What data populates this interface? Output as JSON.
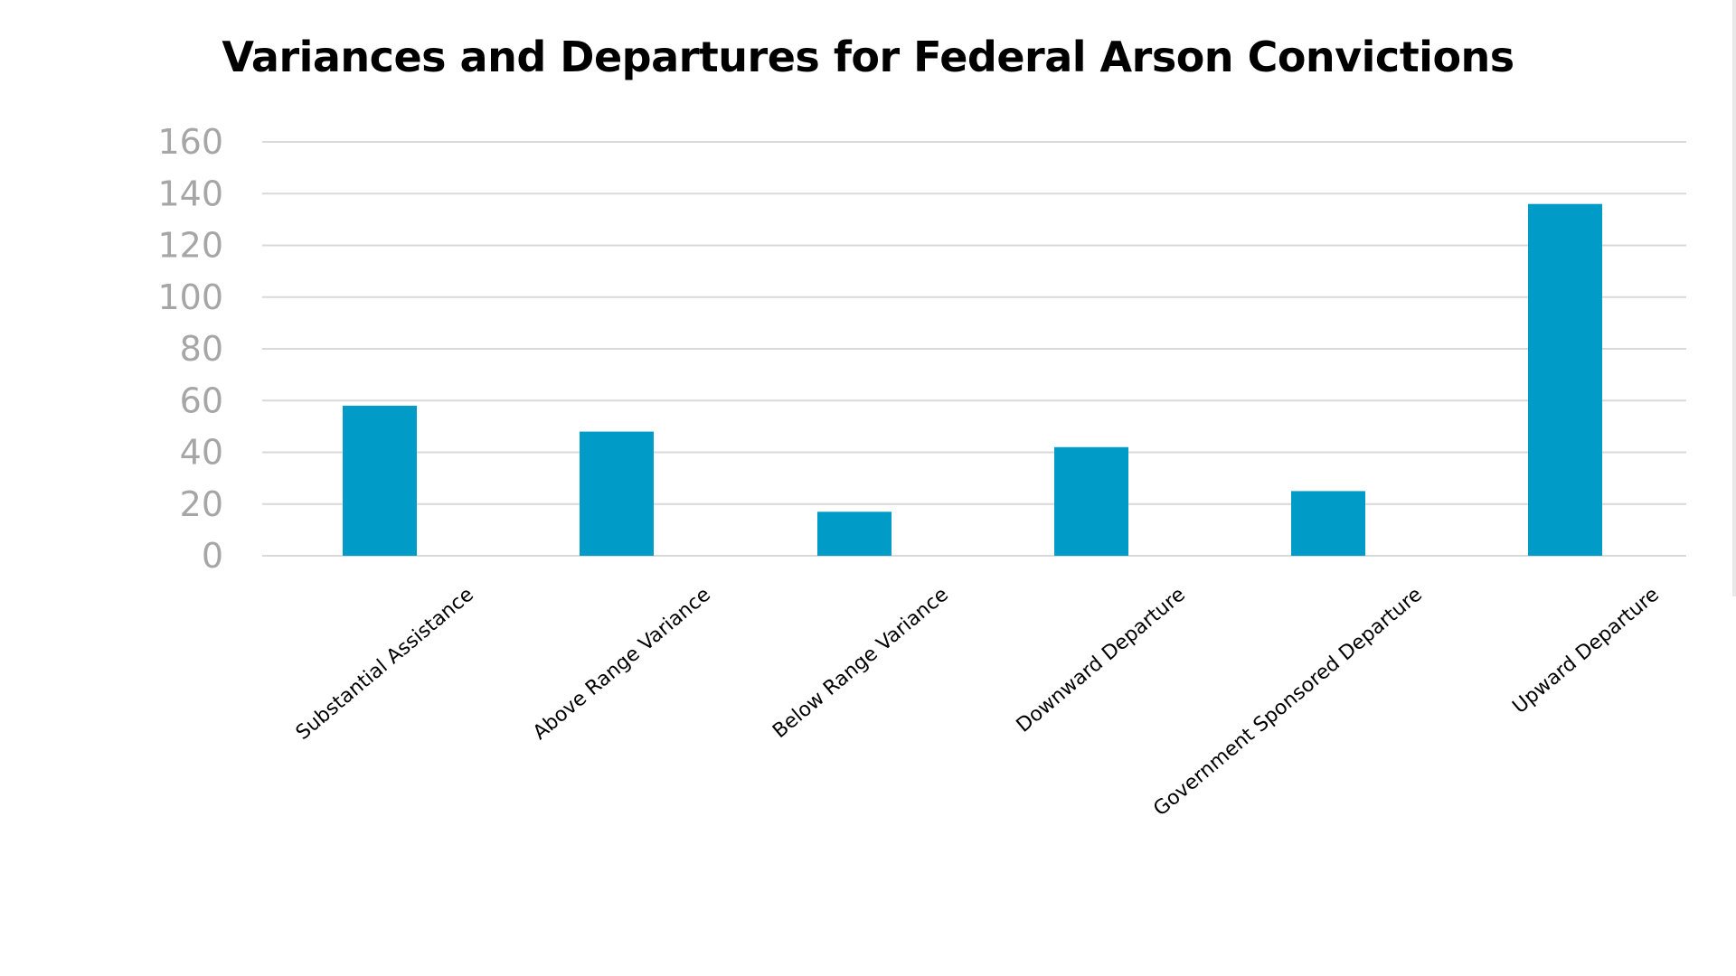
{
  "chart_data": {
    "type": "bar",
    "title": "Variances and Departures for Federal Arson Convictions",
    "xlabel": "",
    "ylabel": "",
    "categories": [
      "Substantial Assistance",
      "Above Range Variance",
      "Below Range Variance",
      "Downward Departure",
      "Government Sponsored Departure",
      "Upward Departure"
    ],
    "values": [
      58,
      48,
      17,
      42,
      25,
      136
    ],
    "ylim": [
      0,
      160
    ],
    "yticks": [
      "0",
      "20",
      "40",
      "60",
      "80",
      "100",
      "120",
      "140",
      "160"
    ],
    "grid": true,
    "legend": "none",
    "bar_color": "#009bc6"
  }
}
